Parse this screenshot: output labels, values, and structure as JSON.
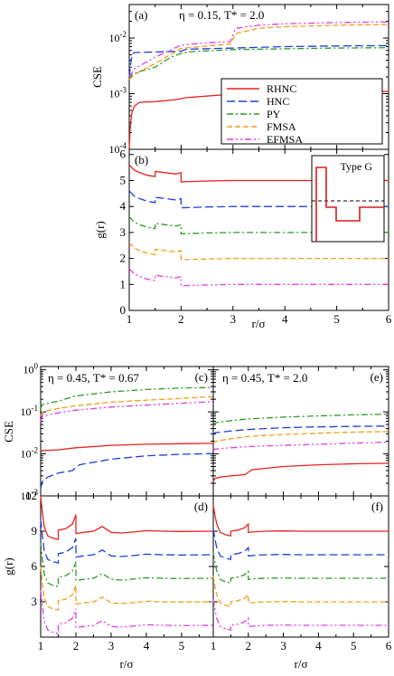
{
  "colors": {
    "RHNC": "#e8221c",
    "HNC": "#1f3fd6",
    "PY": "#2a9a24",
    "FMSA": "#f39c1a",
    "EFMSA": "#e23be0",
    "inset": "#d81b1b"
  },
  "legend": [
    "RHNC",
    "HNC",
    "PY",
    "FMSA",
    "EFMSA"
  ],
  "labels": {
    "cse": "CSE",
    "gr": "g(r)",
    "rsigma": "r/σ",
    "inset_title": "Type G"
  },
  "panels": {
    "a": {
      "tag": "(a)",
      "title": "η = 0.15, T* = 2.0"
    },
    "b": {
      "tag": "(b)"
    },
    "c": {
      "tag": "(c)",
      "title": "η = 0.45, T* = 0.67"
    },
    "d": {
      "tag": "(d)"
    },
    "e": {
      "tag": "(e)",
      "title": "η = 0.45, T* = 2.0"
    },
    "f": {
      "tag": "(f)"
    }
  },
  "chart_data": [
    {
      "panel": "a",
      "type": "line",
      "title": "η = 0.15, T* = 2.0",
      "ylabel": "CSE",
      "yscale": "log",
      "xlim": [
        1,
        6
      ],
      "ylim": [
        0.0001,
        0.04
      ],
      "series": [
        {
          "name": "RHNC",
          "x": [
            1.0,
            1.02,
            1.05,
            1.1,
            1.2,
            1.5,
            1.9,
            2.1,
            3.0,
            4.0,
            5.0,
            6.0
          ],
          "y": [
            0.0001,
            0.00025,
            0.00045,
            0.0006,
            0.0007,
            0.00072,
            0.00078,
            0.00085,
            0.00098,
            0.00105,
            0.00108,
            0.0011
          ]
        },
        {
          "name": "HNC",
          "x": [
            1.0,
            1.05,
            1.1,
            1.5,
            2.0,
            2.1,
            3.0,
            4.0,
            5.0,
            6.0
          ],
          "y": [
            0.002,
            0.005,
            0.0055,
            0.0056,
            0.0058,
            0.0063,
            0.0066,
            0.007,
            0.0072,
            0.0073
          ]
        },
        {
          "name": "PY",
          "x": [
            1.0,
            1.05,
            1.2,
            1.5,
            1.8,
            2.0,
            2.2,
            3.0,
            4.0,
            5.0,
            6.0
          ],
          "y": [
            0.0018,
            0.0022,
            0.0025,
            0.003,
            0.0045,
            0.0053,
            0.0057,
            0.0062,
            0.0064,
            0.0066,
            0.0067
          ]
        },
        {
          "name": "FMSA",
          "x": [
            1.0,
            1.1,
            1.5,
            2.0,
            2.5,
            2.95,
            3.05,
            3.5,
            4.0,
            5.0,
            6.0
          ],
          "y": [
            0.0018,
            0.0022,
            0.0035,
            0.0065,
            0.0072,
            0.0078,
            0.012,
            0.015,
            0.016,
            0.017,
            0.0175
          ]
        },
        {
          "name": "EFMSA",
          "x": [
            1.0,
            1.1,
            1.5,
            2.0,
            2.5,
            2.95,
            3.05,
            3.5,
            4.0,
            5.0,
            6.0
          ],
          "y": [
            0.002,
            0.0028,
            0.0045,
            0.0075,
            0.0082,
            0.0086,
            0.015,
            0.017,
            0.018,
            0.019,
            0.0195
          ]
        }
      ]
    },
    {
      "panel": "b",
      "type": "line",
      "ylabel": "g(r)",
      "xlabel": "r/σ",
      "xlim": [
        1,
        6
      ],
      "ylim": [
        0,
        6.2
      ],
      "series": [
        {
          "name": "RHNC",
          "offset": 4
        },
        {
          "name": "HNC",
          "offset": 3
        },
        {
          "name": "PY",
          "offset": 2
        },
        {
          "name": "FMSA",
          "offset": 1
        },
        {
          "name": "EFMSA",
          "offset": 0
        }
      ],
      "shape_x": [
        1.0,
        1.1,
        1.2,
        1.35,
        1.5,
        1.5,
        1.7,
        1.9,
        2.0,
        2.0,
        2.2,
        2.5,
        3.0,
        4.0,
        5.0,
        6.0
      ],
      "shape_y": [
        1.6,
        1.4,
        1.3,
        1.2,
        1.15,
        1.35,
        1.3,
        1.25,
        1.3,
        0.95,
        0.96,
        0.98,
        1.0,
        1.0,
        1.0,
        1.0
      ]
    },
    {
      "panel": "c",
      "type": "line",
      "title": "η = 0.45, T* = 0.67",
      "ylabel": "CSE",
      "yscale": "log",
      "xlim": [
        1,
        5.9
      ],
      "ylim": [
        0.001,
        1.2
      ],
      "series": [
        {
          "name": "RHNC",
          "x": [
            1.0,
            1.05,
            1.5,
            2.0,
            3.0,
            4.0,
            5.0,
            5.9
          ],
          "y": [
            0.011,
            0.012,
            0.0125,
            0.014,
            0.016,
            0.017,
            0.0175,
            0.0178
          ]
        },
        {
          "name": "HNC",
          "x": [
            1.0,
            1.05,
            1.2,
            1.5,
            1.9,
            2.1,
            3.0,
            4.0,
            5.0,
            5.9
          ],
          "y": [
            0.0015,
            0.0022,
            0.0028,
            0.0035,
            0.004,
            0.0055,
            0.0075,
            0.009,
            0.0098,
            0.0102
          ]
        },
        {
          "name": "PY",
          "x": [
            1.0,
            1.05,
            1.5,
            2.0,
            3.0,
            4.0,
            5.0,
            5.9
          ],
          "y": [
            0.12,
            0.15,
            0.18,
            0.24,
            0.3,
            0.34,
            0.37,
            0.38
          ]
        },
        {
          "name": "FMSA",
          "x": [
            1.0,
            1.05,
            1.5,
            2.0,
            3.0,
            4.0,
            5.0,
            5.9
          ],
          "y": [
            0.08,
            0.1,
            0.12,
            0.14,
            0.17,
            0.19,
            0.21,
            0.23
          ]
        },
        {
          "name": "EFMSA",
          "x": [
            1.0,
            1.05,
            1.5,
            2.0,
            3.0,
            4.0,
            5.0,
            5.9
          ],
          "y": [
            0.06,
            0.08,
            0.095,
            0.11,
            0.13,
            0.145,
            0.16,
            0.175
          ]
        }
      ]
    },
    {
      "panel": "d",
      "type": "line",
      "ylabel": "g(r)",
      "xlabel": "r/σ",
      "xlim": [
        1,
        5.9
      ],
      "ylim": [
        0,
        12
      ],
      "series": [
        {
          "name": "RHNC",
          "offset": 8
        },
        {
          "name": "HNC",
          "offset": 6
        },
        {
          "name": "PY",
          "offset": 4
        },
        {
          "name": "FMSA",
          "offset": 2
        },
        {
          "name": "EFMSA",
          "offset": 0
        }
      ],
      "shape_x": [
        1.0,
        1.05,
        1.1,
        1.2,
        1.35,
        1.5,
        1.5,
        1.7,
        1.9,
        2.0,
        2.0,
        2.2,
        2.5,
        2.75,
        3.0,
        3.3,
        3.7,
        4.0,
        4.5,
        5.0,
        5.9
      ],
      "shape_y": [
        4.0,
        2.6,
        1.4,
        0.6,
        0.4,
        0.3,
        1.1,
        1.2,
        1.6,
        2.4,
        0.8,
        0.9,
        1.0,
        1.4,
        0.9,
        0.85,
        0.95,
        1.05,
        1.0,
        0.98,
        1.0
      ]
    },
    {
      "panel": "e",
      "type": "line",
      "title": "η = 0.45, T* = 2.0",
      "yscale": "log",
      "xlim": [
        1,
        6
      ],
      "ylim": [
        0.001,
        1.2
      ],
      "series": [
        {
          "name": "RHNC",
          "x": [
            1.0,
            1.05,
            1.2,
            1.5,
            1.9,
            2.1,
            3.0,
            4.0,
            5.0,
            6.0
          ],
          "y": [
            0.0022,
            0.0026,
            0.0028,
            0.003,
            0.0032,
            0.0042,
            0.005,
            0.0055,
            0.0058,
            0.006
          ]
        },
        {
          "name": "HNC",
          "x": [
            1.0,
            1.05,
            1.5,
            2.0,
            3.0,
            4.0,
            5.0,
            6.0
          ],
          "y": [
            0.028,
            0.032,
            0.035,
            0.038,
            0.042,
            0.044,
            0.045,
            0.046
          ]
        },
        {
          "name": "PY",
          "x": [
            1.0,
            1.05,
            1.5,
            2.0,
            3.0,
            4.0,
            5.0,
            6.0
          ],
          "y": [
            0.05,
            0.055,
            0.062,
            0.068,
            0.075,
            0.08,
            0.085,
            0.088
          ]
        },
        {
          "name": "FMSA",
          "x": [
            1.0,
            1.05,
            1.5,
            2.0,
            3.0,
            4.0,
            5.0,
            6.0
          ],
          "y": [
            0.018,
            0.02,
            0.023,
            0.026,
            0.029,
            0.031,
            0.033,
            0.034
          ]
        },
        {
          "name": "EFMSA",
          "x": [
            1.0,
            1.05,
            1.5,
            2.0,
            3.0,
            4.0,
            5.0,
            6.0
          ],
          "y": [
            0.012,
            0.013,
            0.014,
            0.015,
            0.016,
            0.017,
            0.018,
            0.019
          ]
        }
      ]
    },
    {
      "panel": "f",
      "type": "line",
      "xlabel": "r/σ",
      "xlim": [
        1,
        6
      ],
      "ylim": [
        0,
        12
      ],
      "series": [
        {
          "name": "RHNC",
          "offset": 8
        },
        {
          "name": "HNC",
          "offset": 6
        },
        {
          "name": "PY",
          "offset": 4
        },
        {
          "name": "FMSA",
          "offset": 2
        },
        {
          "name": "EFMSA",
          "offset": 0
        }
      ],
      "shape_x": [
        1.0,
        1.05,
        1.1,
        1.2,
        1.35,
        1.5,
        1.5,
        1.7,
        1.9,
        2.0,
        2.0,
        2.2,
        2.5,
        3.0,
        3.5,
        4.0,
        5.0,
        6.0
      ],
      "shape_y": [
        3.2,
        2.3,
        1.6,
        0.9,
        0.7,
        0.6,
        1.0,
        1.1,
        1.3,
        1.6,
        0.9,
        0.95,
        1.0,
        1.02,
        1.0,
        1.0,
        1.0,
        1.0
      ]
    }
  ]
}
